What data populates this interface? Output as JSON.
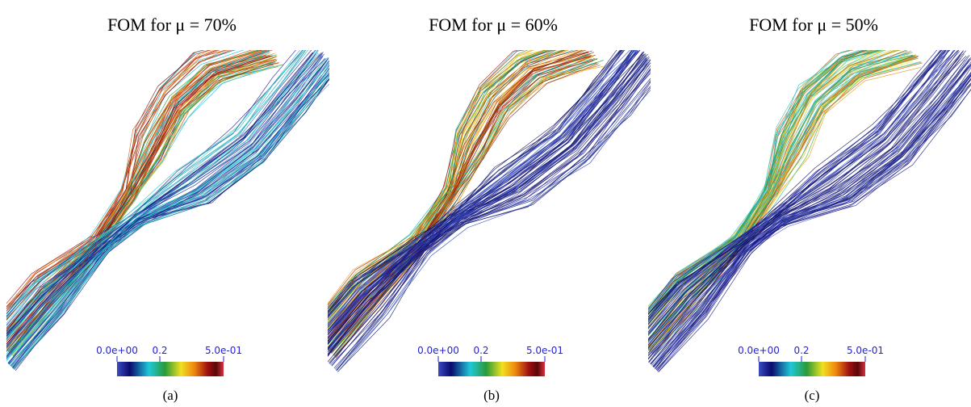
{
  "panels": [
    {
      "title": "FOM for μ = 70%",
      "caption": "(a)",
      "colorbar": {
        "ticks": [
          "0.0e+00",
          "0.2",
          "5.0e-01"
        ]
      }
    },
    {
      "title": "FOM for μ = 60%",
      "caption": "(b)",
      "colorbar": {
        "ticks": [
          "0.0e+00",
          "0.2",
          "5.0e-01"
        ]
      }
    },
    {
      "title": "FOM for μ = 50%",
      "caption": "(c)",
      "colorbar": {
        "ticks": [
          "0.0e+00",
          "0.2",
          "5.0e-01"
        ]
      }
    }
  ]
}
